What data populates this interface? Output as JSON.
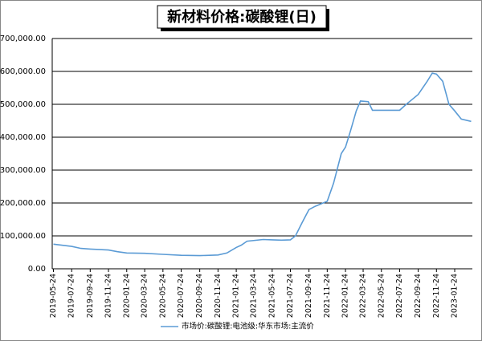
{
  "chart_data": {
    "type": "line",
    "title": "新材料价格:碳酸锂(日)",
    "x": [
      "2019-05-24",
      "2019-07-24",
      "2019-08-24",
      "2019-09-24",
      "2019-11-24",
      "2019-12-24",
      "2020-01-24",
      "2020-03-24",
      "2020-05-24",
      "2020-07-24",
      "2020-09-24",
      "2020-11-24",
      "2020-12-24",
      "2021-01-24",
      "2021-02-10",
      "2021-03-01",
      "2021-04-24",
      "2021-05-24",
      "2021-06-24",
      "2021-07-24",
      "2021-08-10",
      "2021-09-01",
      "2021-09-24",
      "2021-10-15",
      "2021-11-24",
      "2021-12-15",
      "2022-01-10",
      "2022-01-24",
      "2022-02-10",
      "2022-03-01",
      "2022-03-15",
      "2022-04-10",
      "2022-04-24",
      "2022-07-24",
      "2022-08-15",
      "2022-09-24",
      "2022-10-24",
      "2022-11-10",
      "2022-11-24",
      "2022-12-15",
      "2023-01-05",
      "2023-01-24",
      "2023-02-15",
      "2023-03-20"
    ],
    "series": [
      {
        "name": "市场价:碳酸锂:电池级:华东市场:主流价",
        "color": "#5b9bd5",
        "values": [
          75000,
          68000,
          62000,
          60000,
          57000,
          52000,
          48000,
          47000,
          44000,
          41000,
          40000,
          42000,
          48000,
          65000,
          72000,
          84000,
          89000,
          88000,
          87000,
          88000,
          100000,
          140000,
          180000,
          190000,
          205000,
          260000,
          350000,
          370000,
          420000,
          480000,
          510000,
          508000,
          482000,
          482000,
          500000,
          530000,
          570000,
          595000,
          592000,
          570000,
          500000,
          480000,
          455000,
          448000
        ]
      }
    ],
    "xlim": [
      "2019-05-20",
      "2023-03-24"
    ],
    "xticks": [
      "2019-05-24",
      "2019-07-24",
      "2019-09-24",
      "2019-11-24",
      "2020-01-24",
      "2020-03-24",
      "2020-05-24",
      "2020-07-24",
      "2020-09-24",
      "2020-11-24",
      "2021-01-24",
      "2021-03-24",
      "2021-05-24",
      "2021-07-24",
      "2021-09-24",
      "2021-11-24",
      "2022-01-24",
      "2022-03-24",
      "2022-05-24",
      "2022-07-24",
      "2022-09-24",
      "2022-11-24",
      "2023-01-24"
    ],
    "ylim": [
      0,
      700000
    ],
    "yticks": [
      {
        "value": 0,
        "label": "0.00"
      },
      {
        "value": 100000,
        "label": "100,000.00"
      },
      {
        "value": 200000,
        "label": "200,000.00"
      },
      {
        "value": 300000,
        "label": "300,000.00"
      },
      {
        "value": 400000,
        "label": "400,000.00"
      },
      {
        "value": 500000,
        "label": "500,000.00"
      },
      {
        "value": 600000,
        "label": "600,000.00"
      },
      {
        "value": 700000,
        "label": "700,000.00"
      }
    ],
    "grid": true
  }
}
